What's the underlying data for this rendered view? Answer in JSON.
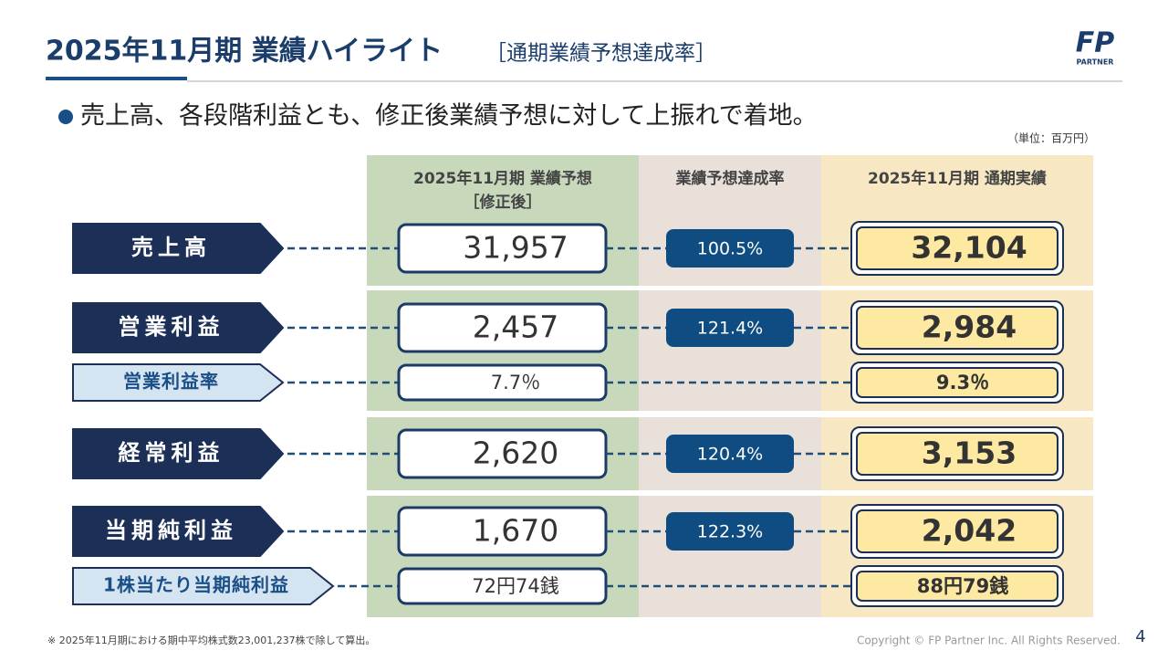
{
  "header": {
    "title": "2025年11月期 業績ハイライト",
    "subtitle": "［通期業績予想達成率］",
    "logo": "FP",
    "logo_sub": "PARTNER"
  },
  "bullet": "売上高、各段階利益とも、修正後業績予想に対して上振れで着地。",
  "unit": "（単位：百万円）",
  "table": {
    "columns": [
      [
        "2025年11月期 業績予想",
        "［修正後］"
      ],
      [
        "業績予想達成率"
      ],
      [
        "2025年11月期 通期実績"
      ]
    ],
    "rows": [
      {
        "label": "売上高",
        "forecast": "31,957",
        "rate": "100.5%",
        "actual": "32,104"
      },
      {
        "label": "営業利益",
        "forecast": "2,457",
        "rate": "121.4%",
        "actual": "2,984"
      },
      {
        "label": "営業利益率",
        "forecast": "7.7％",
        "actual": "9.3％"
      },
      {
        "label": "経常利益",
        "forecast": "2,620",
        "rate": "120.4%",
        "actual": "3,153"
      },
      {
        "label": "当期純利益",
        "forecast": "1,670",
        "rate": "122.3%",
        "actual": "2,042"
      },
      {
        "label": "1株当たり当期純利益",
        "forecast": "72円74銭",
        "actual": "88円79銭"
      }
    ]
  },
  "footer": {
    "note": "※ 2025年11月期における期中平均株式数23,001,237株で除して算出。",
    "copyright": "Copyright © FP Partner Inc. All Rights Reserved.",
    "page": "4"
  }
}
